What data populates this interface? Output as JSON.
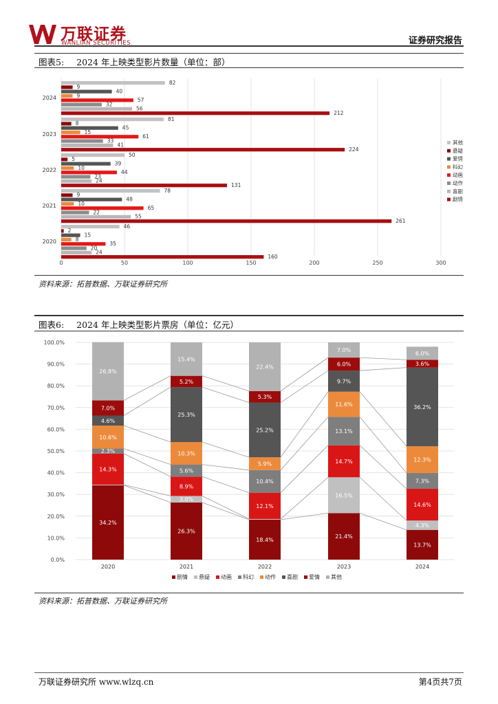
{
  "header": {
    "logo_text": "万联证券",
    "logo_sub": "WANLIAN SECURITIES",
    "right_title": "证券研究报告",
    "logo_color": "#b0111b"
  },
  "figure5": {
    "caption_label": "图表5:",
    "caption_title": "2024 年上映类型影片数量（单位：部）",
    "source": "资料来源：拓普数据、万联证券研究所"
  },
  "figure6": {
    "caption_label": "图表6:",
    "caption_title": "2024 年上映类型影片票房（单位：亿元）",
    "source": "资料来源：拓普数据、万联证券研究所"
  },
  "footer": {
    "left": "万联证券研究所 www.wlzq.cn",
    "right": "第4页共7页"
  },
  "chart_data": [
    {
      "type": "bar",
      "orientation": "horizontal",
      "categories": [
        "2024",
        "2023",
        "2022",
        "2021",
        "2020"
      ],
      "series": [
        {
          "name": "其他",
          "color": "#c2c2c2",
          "values": [
            82,
            81,
            50,
            78,
            46
          ]
        },
        {
          "name": "悬疑",
          "color": "#8e0a0a",
          "values": [
            9,
            8,
            5,
            9,
            2
          ]
        },
        {
          "name": "爱情",
          "color": "#555555",
          "values": [
            40,
            45,
            39,
            48,
            15
          ]
        },
        {
          "name": "科幻",
          "color": "#e88c3e",
          "values": [
            9,
            15,
            10,
            10,
            8
          ]
        },
        {
          "name": "动画",
          "color": "#e31818",
          "values": [
            57,
            61,
            44,
            65,
            35
          ]
        },
        {
          "name": "动作",
          "color": "#8c8c8c",
          "values": [
            32,
            33,
            23,
            22,
            20
          ]
        },
        {
          "name": "喜剧",
          "color": "#b8b8b8",
          "values": [
            56,
            41,
            24,
            55,
            24
          ]
        },
        {
          "name": "剧情",
          "color": "#a80f12",
          "values": [
            212,
            224,
            131,
            261,
            160
          ]
        }
      ],
      "xlim": [
        0,
        300
      ],
      "xticks": [
        "0",
        "50",
        "100",
        "150",
        "200",
        "250",
        "300"
      ],
      "legend": [
        "其他",
        "悬疑",
        "爱情",
        "科幻",
        "动画",
        "动作",
        "喜剧",
        "剧情"
      ],
      "legend_position": "right"
    },
    {
      "type": "bar",
      "stacked": true,
      "categories": [
        "2020",
        "2021",
        "2022",
        "2023",
        "2024"
      ],
      "series": [
        {
          "name": "剧情",
          "color": "#8e0a0a",
          "labels": [
            "34.2%",
            "26.3%",
            "18.4%",
            "21.4%",
            "13.7%"
          ],
          "values": [
            34.2,
            26.3,
            18.4,
            21.4,
            13.7
          ]
        },
        {
          "name": "悬疑",
          "color": "#c0c0c0",
          "labels": [
            "",
            "3.0%",
            "",
            "16.5%",
            "4.3%"
          ],
          "values": [
            0.3,
            3.0,
            0.3,
            16.5,
            4.3
          ]
        },
        {
          "name": "动画",
          "color": "#d91616",
          "labels": [
            "14.3%",
            "8.9%",
            "12.1%",
            "14.7%",
            "14.6%"
          ],
          "values": [
            14.3,
            8.9,
            12.1,
            14.7,
            14.6
          ]
        },
        {
          "name": "科幻",
          "color": "#7e7e7e",
          "labels": [
            "2.3%",
            "5.6%",
            "10.4%",
            "13.1%",
            "7.3%"
          ],
          "values": [
            2.3,
            5.6,
            10.4,
            13.1,
            7.3
          ]
        },
        {
          "name": "动作",
          "color": "#ec8a3c",
          "labels": [
            "10.6%",
            "10.3%",
            "5.9%",
            "11.6%",
            "12.3%"
          ],
          "values": [
            10.6,
            10.3,
            5.9,
            11.6,
            12.3
          ]
        },
        {
          "name": "喜剧",
          "color": "#555555",
          "labels": [
            "4.6%",
            "25.3%",
            "25.2%",
            "9.7%",
            "36.2%"
          ],
          "values": [
            4.6,
            25.3,
            25.2,
            9.7,
            36.2
          ]
        },
        {
          "name": "爱情",
          "color": "#9c0c0c",
          "labels": [
            "7.0%",
            "5.2%",
            "5.3%",
            "6.0%",
            "3.6%"
          ],
          "values": [
            7.0,
            5.2,
            5.3,
            6.0,
            3.6
          ]
        },
        {
          "name": "其他",
          "color": "#b2b2b2",
          "labels": [
            "26.8%",
            "15.4%",
            "22.4%",
            "7.0%",
            "6.0%"
          ],
          "values": [
            26.8,
            15.4,
            22.4,
            7.0,
            6.0
          ]
        }
      ],
      "yticks": [
        "0.0%",
        "10.0%",
        "20.0%",
        "30.0%",
        "40.0%",
        "50.0%",
        "60.0%",
        "70.0%",
        "80.0%",
        "90.0%",
        "100.0%"
      ],
      "ylim": [
        0,
        100
      ],
      "legend": [
        "剧情",
        "悬疑",
        "动画",
        "科幻",
        "动作",
        "喜剧",
        "爱情",
        "其他"
      ],
      "legend_position": "bottom"
    }
  ]
}
